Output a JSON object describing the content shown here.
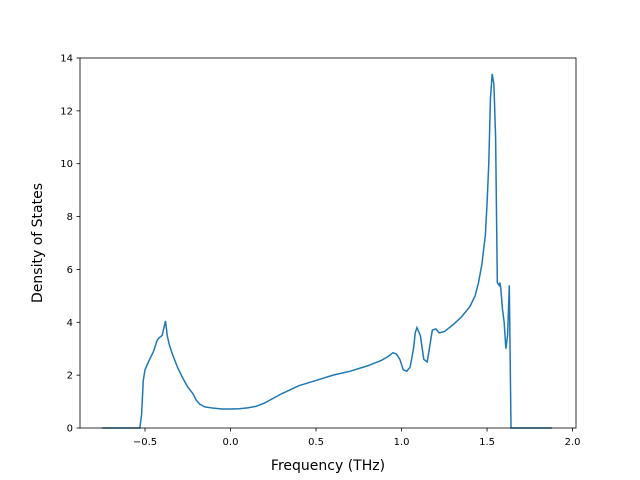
{
  "chart_data": {
    "type": "line",
    "xlabel": "Frequency (THz)",
    "ylabel": "Density of States",
    "xlim": [
      -0.88,
      2.02
    ],
    "ylim": [
      0,
      14
    ],
    "x_ticks": [
      -0.5,
      0.0,
      0.5,
      1.0,
      1.5,
      2.0
    ],
    "x_tick_labels": [
      "−0.5",
      "0.0",
      "0.5",
      "1.0",
      "1.5",
      "2.0"
    ],
    "y_ticks": [
      0,
      2,
      4,
      6,
      8,
      10,
      12,
      14
    ],
    "y_tick_labels": [
      "0",
      "2",
      "4",
      "6",
      "8",
      "10",
      "12",
      "14"
    ],
    "grid": false,
    "legend": "none",
    "line_color": "#1f77b4",
    "series": [
      {
        "x": [
          -0.75,
          -0.6,
          -0.53,
          -0.52,
          -0.51,
          -0.5,
          -0.48,
          -0.45,
          -0.43,
          -0.42,
          -0.4,
          -0.38,
          -0.37,
          -0.36,
          -0.34,
          -0.31,
          -0.28,
          -0.25,
          -0.22,
          -0.2,
          -0.18,
          -0.15,
          -0.1,
          -0.05,
          0.0,
          0.05,
          0.1,
          0.15,
          0.2,
          0.3,
          0.4,
          0.5,
          0.6,
          0.7,
          0.8,
          0.88,
          0.92,
          0.95,
          0.97,
          0.99,
          1.01,
          1.03,
          1.05,
          1.07,
          1.08,
          1.09,
          1.11,
          1.13,
          1.15,
          1.17,
          1.18,
          1.2,
          1.22,
          1.25,
          1.3,
          1.35,
          1.4,
          1.43,
          1.45,
          1.47,
          1.49,
          1.5,
          1.51,
          1.52,
          1.53,
          1.54,
          1.55,
          1.56,
          1.57,
          1.575,
          1.58,
          1.59,
          1.6,
          1.61,
          1.62,
          1.63,
          1.64,
          1.65,
          1.655,
          1.66,
          1.67,
          1.7,
          1.88
        ],
        "y": [
          0,
          0,
          0,
          0.5,
          1.8,
          2.2,
          2.5,
          2.9,
          3.3,
          3.4,
          3.5,
          4.05,
          3.5,
          3.2,
          2.8,
          2.3,
          1.9,
          1.55,
          1.3,
          1.05,
          0.9,
          0.8,
          0.75,
          0.72,
          0.72,
          0.73,
          0.76,
          0.82,
          0.95,
          1.3,
          1.6,
          1.8,
          2.0,
          2.15,
          2.35,
          2.55,
          2.7,
          2.85,
          2.8,
          2.6,
          2.2,
          2.15,
          2.3,
          3.0,
          3.6,
          3.8,
          3.5,
          2.6,
          2.5,
          3.3,
          3.7,
          3.75,
          3.6,
          3.65,
          3.9,
          4.2,
          4.6,
          5.0,
          5.5,
          6.2,
          7.3,
          8.5,
          10.0,
          12.5,
          13.4,
          13.0,
          11.0,
          5.5,
          5.4,
          5.5,
          5.3,
          4.5,
          4.0,
          3.0,
          3.5,
          5.4,
          0,
          0,
          0,
          0,
          0,
          0,
          0
        ]
      }
    ]
  }
}
